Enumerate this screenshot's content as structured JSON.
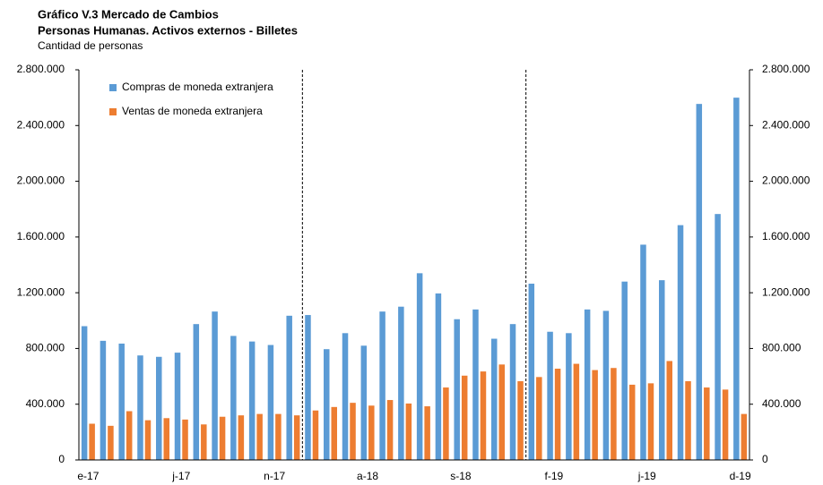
{
  "chart_data": {
    "type": "bar",
    "title": "Gráfico V.3 Mercado de Cambios",
    "subtitle": "Personas Humanas. Activos externos - Billetes",
    "y_label": "Cantidad de personas",
    "categories": [
      "e-17",
      null,
      null,
      null,
      null,
      "j-17",
      null,
      null,
      null,
      null,
      "n-17",
      null,
      null,
      null,
      null,
      "a-18",
      null,
      null,
      null,
      null,
      "s-18",
      null,
      null,
      null,
      null,
      "f-19",
      null,
      null,
      null,
      null,
      "j-19",
      null,
      null,
      null,
      null,
      "d-19"
    ],
    "series": [
      {
        "name": "Compras de moneda extranjera",
        "color": "#5b9bd5",
        "values": [
          960000,
          855000,
          835000,
          750000,
          740000,
          770000,
          975000,
          1065000,
          890000,
          850000,
          825000,
          1035000,
          1040000,
          795000,
          910000,
          820000,
          1065000,
          1100000,
          1340000,
          1195000,
          1010000,
          1080000,
          870000,
          975000,
          1265000,
          920000,
          910000,
          1080000,
          1070000,
          1280000,
          1545000,
          1290000,
          1685000,
          2555000,
          1765000,
          2600000
        ]
      },
      {
        "name": "Ventas de moneda extranjera",
        "color": "#ed7d31",
        "values": [
          260000,
          245000,
          350000,
          285000,
          300000,
          290000,
          255000,
          310000,
          320000,
          330000,
          330000,
          320000,
          355000,
          380000,
          410000,
          390000,
          430000,
          405000,
          385000,
          520000,
          605000,
          635000,
          685000,
          565000,
          595000,
          655000,
          690000,
          645000,
          660000,
          540000,
          550000,
          710000,
          565000,
          520000,
          505000,
          330000
        ]
      }
    ],
    "ylim": [
      0,
      2800000
    ],
    "yticks": [
      0,
      {
        "value": 400000,
        "label": "400.000"
      },
      {
        "value": 800000,
        "label": "800.000"
      },
      {
        "value": 1200000,
        "label": "1.200.000"
      },
      {
        "value": 1600000,
        "label": "1.600.000"
      },
      {
        "value": 2000000,
        "label": "2.000.000"
      },
      {
        "value": 2400000,
        "label": "2.400.000"
      },
      {
        "value": 2800000,
        "label": "2.800.000"
      }
    ],
    "y2lim": [
      0,
      2800000
    ],
    "y2ticks": [
      0,
      {
        "value": 400000,
        "label": "400.000"
      },
      {
        "value": 800000,
        "label": "800.000"
      },
      {
        "value": 1200000,
        "label": "1.200.000"
      },
      {
        "value": 1600000,
        "label": "1.600.000"
      },
      {
        "value": 2000000,
        "label": "2.000.000"
      },
      {
        "value": 2400000,
        "label": "2.400.000"
      },
      {
        "value": 2800000,
        "label": "2.800.000"
      }
    ],
    "legend": "upper left",
    "grid": false
  }
}
